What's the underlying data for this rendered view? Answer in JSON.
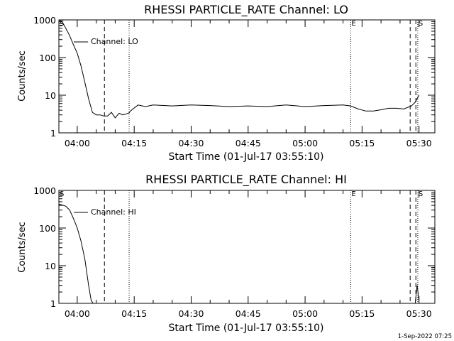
{
  "footer_timestamp": "1-Sep-2022 07:25",
  "chart_data": [
    {
      "type": "line",
      "title": "RHESSI PARTICLE_RATE Channel: LO",
      "xlabel": "Start Time (01-Jul-17 03:55:10)",
      "ylabel": "Counts/sec",
      "yscale": "log",
      "xlim": [
        "03:55:10",
        "05:34:10"
      ],
      "ylim": [
        1,
        1000
      ],
      "x_ticks": [
        "04:00",
        "04:15",
        "04:30",
        "04:45",
        "05:00",
        "05:15",
        "05:30"
      ],
      "y_ticks": [
        "1",
        "10",
        "100",
        "1000"
      ],
      "legend": "Channel: LO",
      "markers": [
        {
          "time": "03:55:10",
          "style": "dotted",
          "label": "S"
        },
        {
          "time": "04:07:10",
          "style": "dashed",
          "label": ""
        },
        {
          "time": "04:13:40",
          "style": "dotted",
          "label": ""
        },
        {
          "time": "05:12:00",
          "style": "dotted",
          "label": "E"
        },
        {
          "time": "05:27:40",
          "style": "dashed",
          "label": ""
        },
        {
          "time": "05:29:10",
          "style": "dashed",
          "label": ""
        },
        {
          "time": "05:29:40",
          "style": "dotted",
          "label": "S"
        }
      ],
      "series": [
        {
          "x": [
            "03:55:10",
            "03:56:00",
            "03:57:00",
            "03:58:00",
            "03:59:00",
            "04:00:00",
            "04:01:00",
            "04:02:00",
            "04:03:00",
            "04:04:00",
            "04:05:00",
            "04:06:00",
            "04:07:00",
            "04:08:00",
            "04:09:00",
            "04:10:00",
            "04:11:00",
            "04:12:00",
            "04:13:00",
            "04:13:40",
            "04:14:00",
            "04:16:00",
            "04:18:00",
            "04:20:00",
            "04:25:00",
            "04:30:00",
            "04:35:00",
            "04:40:00",
            "04:45:00",
            "04:50:00",
            "04:55:00",
            "05:00:00",
            "05:05:00",
            "05:10:00",
            "05:12:00",
            "05:14:00",
            "05:16:00",
            "05:18:00",
            "05:20:00",
            "05:22:00",
            "05:24:00",
            "05:26:00",
            "05:28:00",
            "05:29:00",
            "05:30:00"
          ],
          "y": [
            1000,
            900,
            600,
            380,
            220,
            130,
            60,
            22,
            8,
            3.5,
            3,
            3,
            2.8,
            2.8,
            3.5,
            2.5,
            3.3,
            3,
            3.2,
            3.4,
            3.8,
            5.5,
            5,
            5.5,
            5.2,
            5.5,
            5.3,
            5,
            5.2,
            5,
            5.5,
            5,
            5.3,
            5.5,
            5.2,
            4.3,
            3.8,
            3.8,
            4.1,
            4.5,
            4.5,
            4.3,
            5.2,
            6.5,
            10
          ]
        }
      ]
    },
    {
      "type": "line",
      "title": "RHESSI PARTICLE_RATE Channel: HI",
      "xlabel": "Start Time (01-Jul-17 03:55:10)",
      "ylabel": "Counts/sec",
      "yscale": "log",
      "xlim": [
        "03:55:10",
        "05:34:10"
      ],
      "ylim": [
        1,
        1000
      ],
      "x_ticks": [
        "04:00",
        "04:15",
        "04:30",
        "04:45",
        "05:00",
        "05:15",
        "05:30"
      ],
      "y_ticks": [
        "1",
        "10",
        "100",
        "1000"
      ],
      "legend": "Channel: HI",
      "markers": [
        {
          "time": "03:55:10",
          "style": "dotted",
          "label": "S"
        },
        {
          "time": "04:07:10",
          "style": "dashed",
          "label": ""
        },
        {
          "time": "04:13:40",
          "style": "dotted",
          "label": ""
        },
        {
          "time": "05:12:00",
          "style": "dotted",
          "label": "E"
        },
        {
          "time": "05:27:40",
          "style": "dashed",
          "label": ""
        },
        {
          "time": "05:29:10",
          "style": "dashed",
          "label": ""
        },
        {
          "time": "05:29:40",
          "style": "dotted",
          "label": "S"
        }
      ],
      "series": [
        {
          "x": [
            "03:55:10",
            "03:56:00",
            "03:57:00",
            "03:58:00",
            "03:59:00",
            "04:00:00",
            "04:01:00",
            "04:02:00",
            "04:03:00",
            "04:03:40",
            "04:04:10"
          ],
          "y": [
            430,
            410,
            380,
            300,
            180,
            100,
            45,
            15,
            3,
            1.2,
            1
          ]
        },
        {
          "x": [
            "05:29:00",
            "05:29:30",
            "05:30:00"
          ],
          "y": [
            1,
            3,
            1.2
          ]
        }
      ]
    }
  ]
}
